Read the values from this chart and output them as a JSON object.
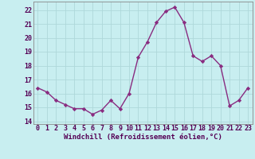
{
  "x": [
    0,
    1,
    2,
    3,
    4,
    5,
    6,
    7,
    8,
    9,
    10,
    11,
    12,
    13,
    14,
    15,
    16,
    17,
    18,
    19,
    20,
    21,
    22,
    23
  ],
  "y": [
    16.4,
    16.1,
    15.5,
    15.2,
    14.9,
    14.9,
    14.5,
    14.8,
    15.5,
    14.9,
    16.0,
    18.6,
    19.7,
    21.1,
    21.9,
    22.2,
    21.1,
    18.7,
    18.3,
    18.7,
    18.0,
    15.1,
    15.5,
    16.4
  ],
  "line_color": "#892b80",
  "marker": "D",
  "marker_size": 2.2,
  "linewidth": 1.0,
  "bg_color": "#c8eef0",
  "grid_color": "#aed8da",
  "xlabel": "Windchill (Refroidissement éolien,°C)",
  "xlabel_fontsize": 6.5,
  "tick_fontsize": 6.0,
  "ylim": [
    13.8,
    22.6
  ],
  "yticks": [
    14,
    15,
    16,
    17,
    18,
    19,
    20,
    21,
    22
  ],
  "xlim": [
    -0.5,
    23.5
  ],
  "xticks": [
    0,
    1,
    2,
    3,
    4,
    5,
    6,
    7,
    8,
    9,
    10,
    11,
    12,
    13,
    14,
    15,
    16,
    17,
    18,
    19,
    20,
    21,
    22,
    23
  ],
  "spine_color": "#888888"
}
